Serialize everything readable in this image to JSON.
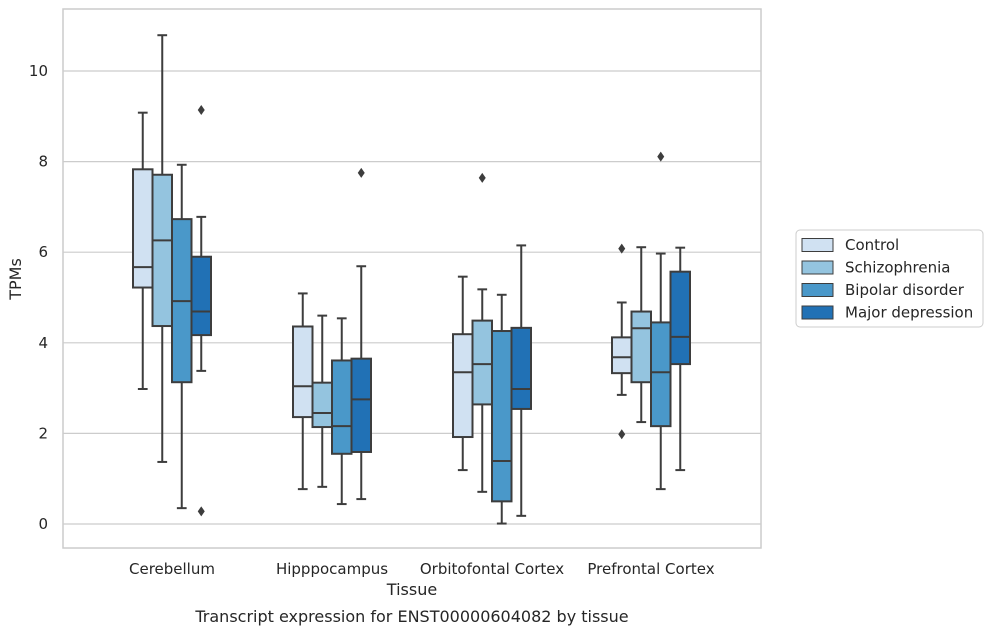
{
  "chart_data": {
    "type": "box",
    "caption": "Transcript expression for ENST00000604082 by tissue",
    "xlabel": "Tissue",
    "ylabel": "TPMs",
    "ylim": [
      -0.5,
      11.3
    ],
    "yticks": [
      0,
      2,
      4,
      6,
      8,
      10
    ],
    "grid": "horizontal",
    "legend_position": "right",
    "categories": [
      "Cerebellum",
      "Hipppocampus",
      "Orbitofontal Cortex",
      "Prefrontal Cortex"
    ],
    "series": [
      {
        "name": "Control",
        "color": "#d0e1f2",
        "boxes": [
          {
            "whisker_low": 2.98,
            "q1": 5.22,
            "median": 5.67,
            "q3": 7.83,
            "whisker_high": 9.08,
            "outliers": []
          },
          {
            "whisker_low": 0.77,
            "q1": 2.36,
            "median": 3.04,
            "q3": 4.36,
            "whisker_high": 5.09,
            "outliers": []
          },
          {
            "whisker_low": 1.19,
            "q1": 1.92,
            "median": 3.35,
            "q3": 4.19,
            "whisker_high": 5.46,
            "outliers": []
          },
          {
            "whisker_low": 2.85,
            "q1": 3.33,
            "median": 3.68,
            "q3": 4.12,
            "whisker_high": 4.89,
            "outliers": [
              6.08,
              1.98
            ]
          }
        ]
      },
      {
        "name": "Schizophrenia",
        "color": "#94c4df",
        "boxes": [
          {
            "whisker_low": 1.37,
            "q1": 4.37,
            "median": 6.26,
            "q3": 7.71,
            "whisker_high": 10.79,
            "outliers": []
          },
          {
            "whisker_low": 0.82,
            "q1": 2.14,
            "median": 2.45,
            "q3": 3.12,
            "whisker_high": 4.6,
            "outliers": []
          },
          {
            "whisker_low": 0.71,
            "q1": 2.64,
            "median": 3.53,
            "q3": 4.49,
            "whisker_high": 5.18,
            "outliers": [
              7.64
            ]
          },
          {
            "whisker_low": 2.25,
            "q1": 3.13,
            "median": 4.32,
            "q3": 4.69,
            "whisker_high": 6.11,
            "outliers": []
          }
        ]
      },
      {
        "name": "Bipolar disorder",
        "color": "#4a98c9",
        "boxes": [
          {
            "whisker_low": 0.35,
            "q1": 3.13,
            "median": 4.92,
            "q3": 6.73,
            "whisker_high": 7.93,
            "outliers": []
          },
          {
            "whisker_low": 0.44,
            "q1": 1.55,
            "median": 2.16,
            "q3": 3.61,
            "whisker_high": 4.54,
            "outliers": []
          },
          {
            "whisker_low": 0.01,
            "q1": 0.5,
            "median": 1.39,
            "q3": 4.26,
            "whisker_high": 5.06,
            "outliers": []
          },
          {
            "whisker_low": 0.77,
            "q1": 2.16,
            "median": 3.35,
            "q3": 4.45,
            "whisker_high": 5.97,
            "outliers": [
              8.11
            ]
          }
        ]
      },
      {
        "name": "Major depression",
        "color": "#2171b5",
        "boxes": [
          {
            "whisker_low": 3.38,
            "q1": 4.17,
            "median": 4.69,
            "q3": 5.9,
            "whisker_high": 6.78,
            "outliers": [
              9.14,
              0.28
            ]
          },
          {
            "whisker_low": 0.55,
            "q1": 1.59,
            "median": 2.75,
            "q3": 3.65,
            "whisker_high": 5.69,
            "outliers": [
              7.75
            ]
          },
          {
            "whisker_low": 0.18,
            "q1": 2.54,
            "median": 2.98,
            "q3": 4.33,
            "whisker_high": 6.15,
            "outliers": []
          },
          {
            "whisker_low": 1.19,
            "q1": 3.53,
            "median": 4.13,
            "q3": 5.57,
            "whisker_high": 6.1,
            "outliers": []
          }
        ]
      }
    ]
  }
}
